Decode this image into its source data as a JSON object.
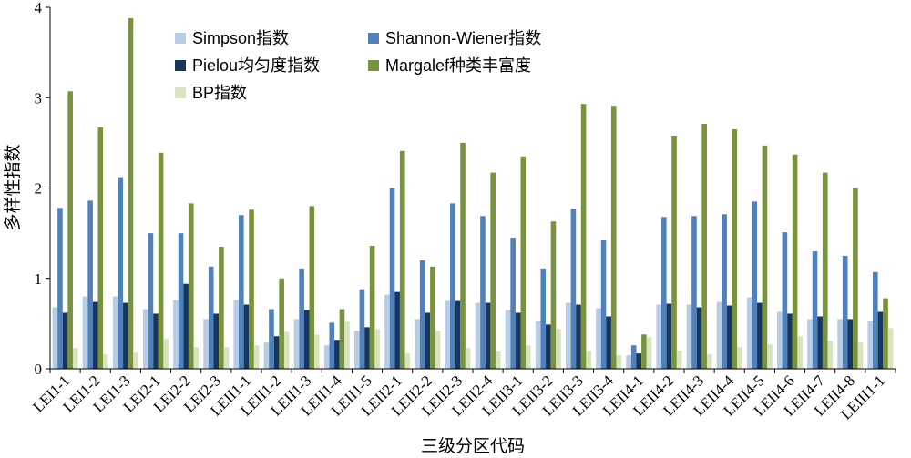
{
  "chart_data": {
    "type": "bar",
    "xlabel": "三级分区代码",
    "ylabel": "多样性指数",
    "ylim": [
      0,
      4
    ],
    "yticks": [
      0,
      1,
      2,
      3,
      4
    ],
    "grid": false,
    "legend_position": "top",
    "categories": [
      "LEI1-1",
      "LEI1-2",
      "LEI1-3",
      "LEI2-1",
      "LEI2-2",
      "LEI2-3",
      "LEII1-1",
      "LEII1-2",
      "LEII1-3",
      "LEII1-4",
      "LEII1-5",
      "LEII2-1",
      "LEII2-2",
      "LEII2-3",
      "LEII2-4",
      "LEII3-1",
      "LEII3-2",
      "LEII3-3",
      "LEII3-4",
      "LEII4-1",
      "LEII4-2",
      "LEII4-3",
      "LEII4-4",
      "LEII4-5",
      "LEII4-6",
      "LEII4-7",
      "LEII4-8",
      "LEIII1-1"
    ],
    "series": [
      {
        "name": "Simpson指数",
        "color": "#b8cce4",
        "values": [
          0.68,
          0.8,
          0.8,
          0.66,
          0.76,
          0.55,
          0.76,
          0.29,
          0.55,
          0.26,
          0.42,
          0.82,
          0.55,
          0.75,
          0.73,
          0.65,
          0.53,
          0.73,
          0.67,
          0.15,
          0.71,
          0.71,
          0.74,
          0.79,
          0.63,
          0.55,
          0.55,
          0.53
        ]
      },
      {
        "name": "Shannon-Wiener指数",
        "color": "#4f81bd",
        "values": [
          1.78,
          1.86,
          2.12,
          1.5,
          1.5,
          1.13,
          1.7,
          0.66,
          1.11,
          0.51,
          0.88,
          2.0,
          1.2,
          1.83,
          1.69,
          1.45,
          1.11,
          1.77,
          1.42,
          0.26,
          1.68,
          1.69,
          1.71,
          1.85,
          1.51,
          1.3,
          1.25,
          1.07
        ]
      },
      {
        "name": "Pielou均匀度指数",
        "color": "#17365d",
        "values": [
          0.62,
          0.74,
          0.73,
          0.61,
          0.94,
          0.61,
          0.71,
          0.36,
          0.65,
          0.32,
          0.46,
          0.85,
          0.62,
          0.75,
          0.73,
          0.62,
          0.49,
          0.71,
          0.58,
          0.17,
          0.72,
          0.68,
          0.7,
          0.73,
          0.61,
          0.58,
          0.55,
          0.63
        ]
      },
      {
        "name": "Margalef种类丰富度",
        "color": "#77933c",
        "values": [
          3.07,
          2.67,
          3.88,
          2.39,
          1.83,
          1.35,
          1.76,
          1.0,
          1.8,
          0.66,
          1.36,
          2.41,
          1.13,
          2.5,
          2.17,
          2.35,
          1.63,
          2.93,
          2.91,
          0.38,
          2.58,
          2.71,
          2.65,
          2.47,
          2.37,
          2.17,
          2.0,
          0.78
        ]
      },
      {
        "name": "BP指数",
        "color": "#d7e4bd",
        "values": [
          0.23,
          0.16,
          0.18,
          0.33,
          0.24,
          0.24,
          0.26,
          0.41,
          0.38,
          0.52,
          0.44,
          0.17,
          0.42,
          0.23,
          0.19,
          0.26,
          0.44,
          0.19,
          0.15,
          0.35,
          0.2,
          0.16,
          0.24,
          0.27,
          0.36,
          0.31,
          0.29,
          0.45
        ]
      }
    ]
  }
}
